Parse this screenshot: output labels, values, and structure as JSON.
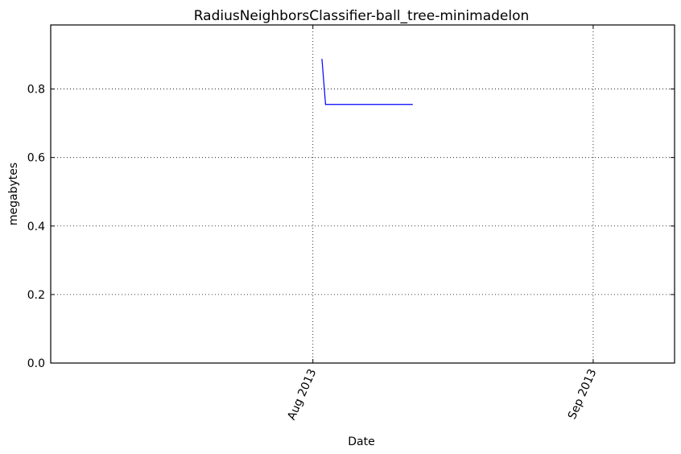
{
  "chart_data": {
    "type": "line",
    "title": "RadiusNeighborsClassifier-ball_tree-minimadelon",
    "xlabel": "Date",
    "ylabel": "megabytes",
    "ylim": [
      0,
      0.987
    ],
    "xlim": [
      "2013-07-03",
      "2013-09-10"
    ],
    "y_ticks": [
      "0.0",
      "0.2",
      "0.4",
      "0.6",
      "0.8"
    ],
    "x_ticks": [
      {
        "date": "2013-08-01",
        "label": "Aug 2013"
      },
      {
        "date": "2013-09-01",
        "label": "Sep 2013"
      }
    ],
    "grid": true,
    "series": [
      {
        "color": "#0000ff",
        "points": [
          {
            "x": "2013-08-02",
            "y": 0.887
          },
          {
            "x": "2013-08-02.4",
            "y": 0.755
          },
          {
            "x": "2013-08-12",
            "y": 0.755
          }
        ]
      }
    ]
  }
}
